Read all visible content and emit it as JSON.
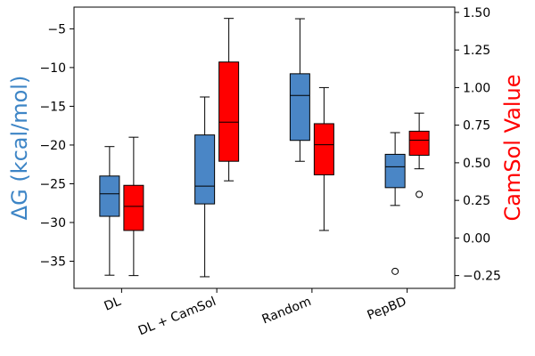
{
  "chart_data": {
    "type": "box",
    "categories": [
      "DL",
      "DL + CamSol",
      "Random",
      "PepBD"
    ],
    "left_axis": {
      "label": "ΔG (kcal/mol)",
      "color": "#3d85c6",
      "ylim": [
        -38.5,
        -2.2
      ],
      "ticks": [
        -5,
        -10,
        -15,
        -20,
        -25,
        -30,
        -35
      ],
      "tick_labels": [
        "−5",
        "−10",
        "−15",
        "−20",
        "−25",
        "−30",
        "−35"
      ]
    },
    "right_axis": {
      "label": "CamSol Value",
      "color": "#ff0000",
      "ylim": [
        -0.335,
        1.535
      ],
      "ticks": [
        1.5,
        1.25,
        1.0,
        0.75,
        0.5,
        0.25,
        0.0,
        -0.25
      ],
      "tick_labels": [
        "1.50",
        "1.25",
        "1.00",
        "0.75",
        "0.50",
        "0.25",
        "0.00",
        "−0.25"
      ]
    },
    "series": [
      {
        "name": "ΔG",
        "axis": "left",
        "color": "#4a86c6",
        "boxes": [
          {
            "whislo": -36.8,
            "q1": -29.2,
            "med": -26.3,
            "q3": -24.0,
            "whishi": -20.2,
            "fliers": []
          },
          {
            "whislo": -37.0,
            "q1": -27.6,
            "med": -25.3,
            "q3": -18.7,
            "whishi": -13.8,
            "fliers": []
          },
          {
            "whislo": -22.1,
            "q1": -19.4,
            "med": -13.6,
            "q3": -10.8,
            "whishi": -3.7,
            "fliers": []
          },
          {
            "whislo": -27.8,
            "q1": -25.5,
            "med": -22.8,
            "q3": -21.2,
            "whishi": -18.4,
            "fliers": [
              -36.3
            ]
          }
        ]
      },
      {
        "name": "CamSol",
        "axis": "right",
        "color": "#ff0000",
        "boxes": [
          {
            "whislo": -0.25,
            "q1": 0.05,
            "med": 0.21,
            "q3": 0.35,
            "whishi": 0.67,
            "fliers": []
          },
          {
            "whislo": 0.38,
            "q1": 0.51,
            "med": 0.77,
            "q3": 1.17,
            "whishi": 1.46,
            "fliers": []
          },
          {
            "whislo": 0.05,
            "q1": 0.42,
            "med": 0.62,
            "q3": 0.76,
            "whishi": 1.0,
            "fliers": []
          },
          {
            "whislo": 0.46,
            "q1": 0.55,
            "med": 0.65,
            "q3": 0.71,
            "whishi": 0.83,
            "fliers": [
              0.29
            ]
          }
        ]
      }
    ]
  }
}
